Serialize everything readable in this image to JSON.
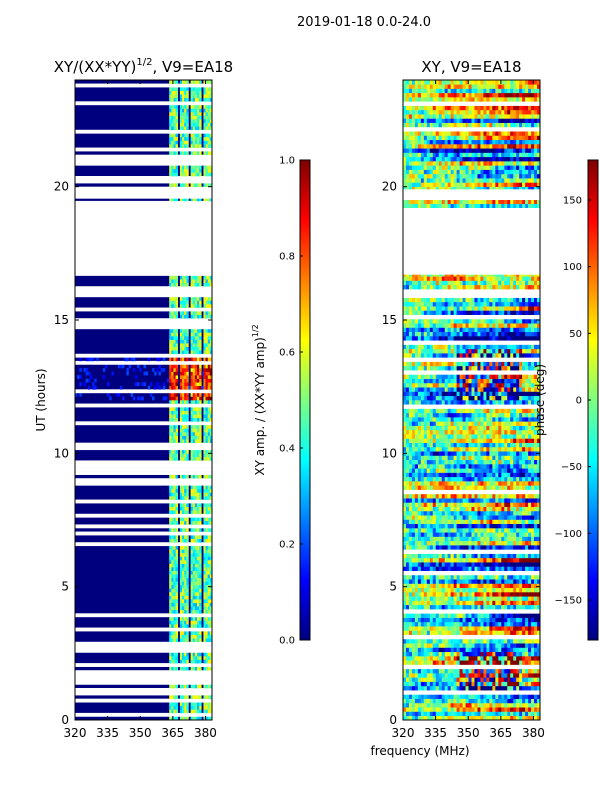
{
  "chart_data": [
    {
      "type": "heatmap",
      "suptitle": "2019-01-18 0.0-24.0",
      "title_main": "XY/(XX*YY)",
      "title_sup": "1/2",
      "title_rest": ", V9=EA18",
      "xlabel": "",
      "ylabel": "UT (hours)",
      "xlim": [
        320,
        383
      ],
      "ylim": [
        0,
        24
      ],
      "xticks": [
        320,
        335,
        350,
        365,
        380
      ],
      "yticks": [
        0,
        5,
        10,
        15,
        20
      ],
      "value_range": [
        0.0,
        1.0
      ],
      "colorbar": {
        "label_main": "XY amp. / (XX*YY amp)",
        "label_sup": "1/2",
        "ticks": [
          "0.0",
          "0.2",
          "0.4",
          "0.6",
          "0.8",
          "1.0"
        ],
        "tick_values": [
          0.0,
          0.2,
          0.4,
          0.6,
          0.8,
          1.0
        ],
        "range": [
          0.0,
          1.0
        ]
      },
      "flagged_time_ranges": [
        [
          16.7,
          19.4
        ],
        [
          19.55,
          19.9
        ]
      ],
      "active_channel_bands_mhz": [
        [
          363,
          367
        ],
        [
          368,
          372
        ],
        [
          373,
          378
        ],
        [
          379,
          383
        ]
      ],
      "bright_time_band_hours": [
        12.0,
        13.6
      ]
    },
    {
      "type": "heatmap",
      "title": "XY, V9=EA18",
      "xlabel": "frequency (MHz)",
      "ylabel": "",
      "xlim": [
        320,
        383
      ],
      "ylim": [
        0,
        24
      ],
      "xticks": [
        320,
        335,
        350,
        365,
        380
      ],
      "yticks": [
        0,
        5,
        10,
        15,
        20
      ],
      "value_range": [
        -180,
        180
      ],
      "colorbar": {
        "label": "phase (deg)",
        "ticks": [
          "−150",
          "−100",
          "−50",
          "0",
          "50",
          "100",
          "150"
        ],
        "tick_values": [
          -150,
          -100,
          -50,
          0,
          50,
          100,
          150
        ],
        "range": [
          -180,
          180
        ]
      },
      "flagged_time_ranges": [
        [
          16.7,
          19.2
        ],
        [
          19.5,
          19.9
        ]
      ]
    }
  ],
  "colors": {
    "jet": [
      "#00007f",
      "#0000ff",
      "#007fff",
      "#00ffff",
      "#7fff7f",
      "#ffff00",
      "#ff7f00",
      "#ff0000",
      "#7f0000"
    ],
    "flag": "#ffffff",
    "axis": "#000000"
  }
}
